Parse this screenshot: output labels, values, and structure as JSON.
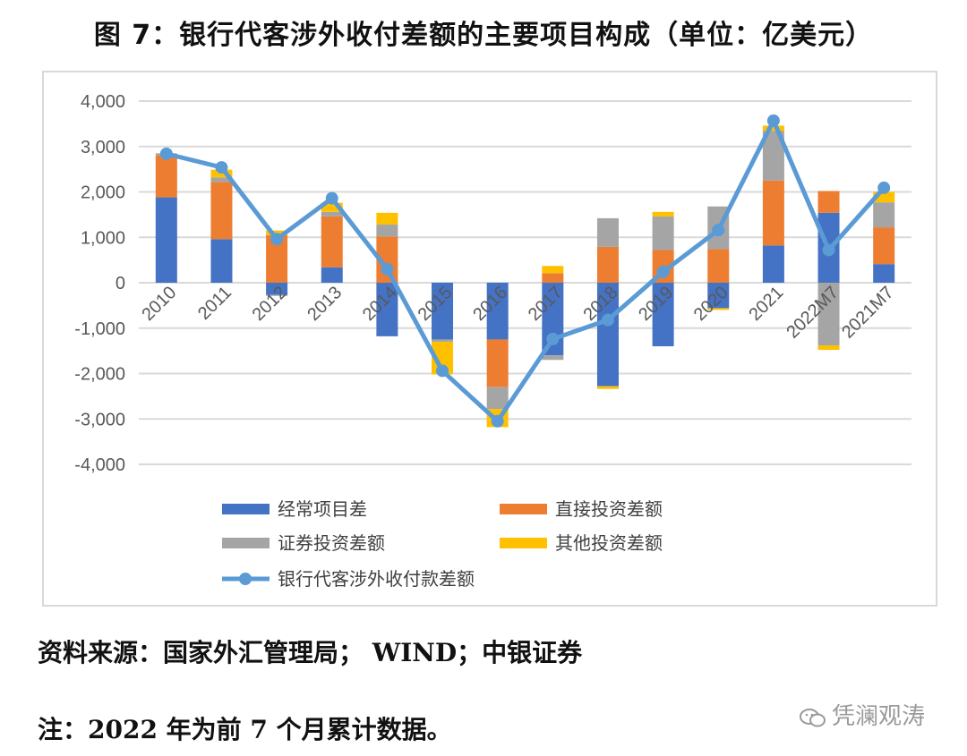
{
  "title": "图 7：银行代客涉外收付差额的主要项目构成（单位：亿美元）",
  "source": "资料来源：国家外汇管理局； WIND；中银证券",
  "note": "注：2022 年为前 7 个月累计数据。",
  "watermark": "凭澜观涛",
  "chart_data": {
    "type": "bar",
    "stacked": true,
    "categories": [
      "2010",
      "2011",
      "2012",
      "2013",
      "2014",
      "2015",
      "2016",
      "2017",
      "2018",
      "2019",
      "2020",
      "2021",
      "2022M7",
      "2021M7"
    ],
    "ylim": [
      -4000,
      4000
    ],
    "yticks": [
      4000,
      3000,
      2000,
      1000,
      0,
      -1000,
      -2000,
      -3000,
      -4000
    ],
    "ytick_labels": [
      "4,000",
      "3,000",
      "2,000",
      "1,000",
      "0",
      "-1,000",
      "-2,000",
      "-3,000",
      "-4,000"
    ],
    "grid": true,
    "legend_position": "bottom",
    "series": [
      {
        "name": "经常项目差",
        "kind": "bar",
        "color": "#4472c4",
        "values": [
          1880,
          960,
          -270,
          340,
          -1180,
          -1250,
          -1250,
          -1600,
          -2280,
          -1400,
          -560,
          820,
          1540,
          410
        ]
      },
      {
        "name": "直接投资差额",
        "kind": "bar",
        "color": "#ed7d31",
        "values": [
          920,
          1260,
          1050,
          1120,
          1020,
          0,
          -1050,
          210,
          790,
          720,
          740,
          1430,
          480,
          810
        ]
      },
      {
        "name": "证券投资差额",
        "kind": "bar",
        "color": "#a5a5a5",
        "values": [
          50,
          100,
          -20,
          100,
          260,
          -50,
          -480,
          -100,
          630,
          740,
          940,
          1090,
          -1380,
          550
        ]
      },
      {
        "name": "其他投资差额",
        "kind": "bar",
        "color": "#ffc000",
        "values": [
          0,
          170,
          100,
          200,
          260,
          -720,
          -400,
          160,
          -60,
          100,
          -40,
          120,
          -100,
          230
        ]
      },
      {
        "name": "银行代客涉外收付款差额",
        "kind": "line",
        "color": "#5b9bd5",
        "values": [
          2840,
          2540,
          960,
          1860,
          300,
          -1940,
          -3050,
          -1240,
          -820,
          240,
          1160,
          3570,
          720,
          2090
        ]
      }
    ]
  }
}
